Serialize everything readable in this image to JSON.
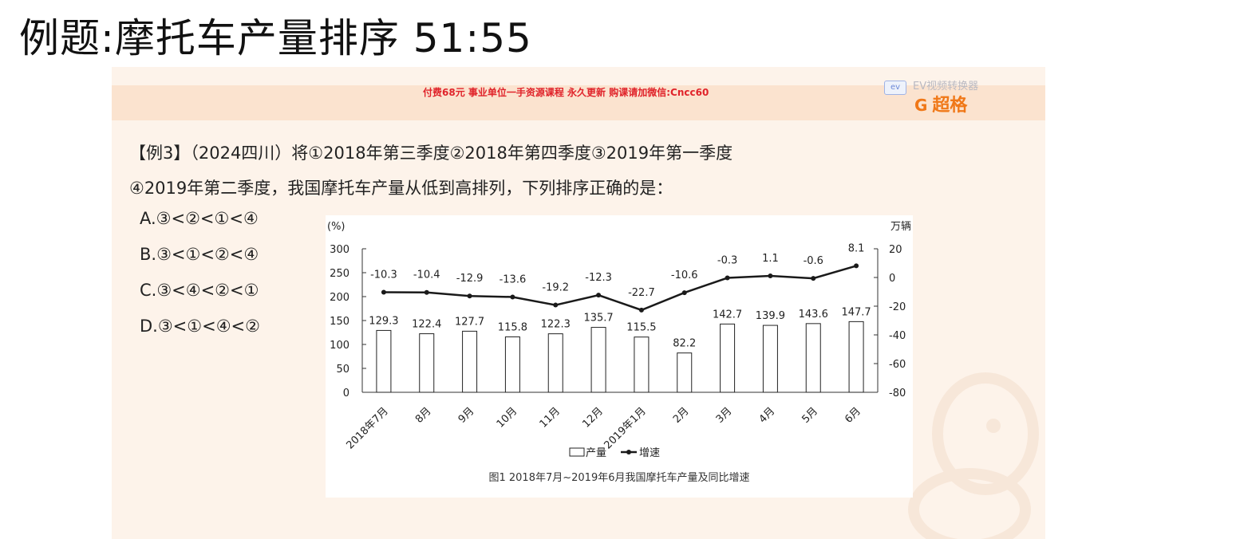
{
  "slide_title": "例题:摩托车产量排序 51:55",
  "banner": {
    "ad_text": "付费68元 事业单位一手资源课程 永久更新 购课请加微信:Cncc60",
    "watermark_badge": "ev",
    "watermark_text": "EV视频转换器",
    "brand_icon": "G",
    "brand_name": "超格"
  },
  "question": {
    "line1": "【例3】（2024四川）将①2018年第三季度②2018年第四季度③2019年第一季度",
    "line2": "④2019年第二季度，我国摩托车产量从低到高排列，下列排序正确的是："
  },
  "options": [
    {
      "text": "A.③<②<①<④"
    },
    {
      "text": "B.③<①<②<④"
    },
    {
      "text": "C.③<④<②<①"
    },
    {
      "text": "D.③<①<④<②"
    }
  ],
  "chart_data": {
    "type": "bar+line",
    "caption": "图1  2018年7月~2019年6月我国摩托车产量及同比增速",
    "left_unit": "(%)",
    "right_unit": "万辆",
    "categories": [
      "2018年7月",
      "8月",
      "9月",
      "10月",
      "11月",
      "12月",
      "2019年1月",
      "2月",
      "3月",
      "4月",
      "5月",
      "6月"
    ],
    "left_ticks": [
      "300",
      "250",
      "200",
      "150",
      "100",
      "50",
      "0"
    ],
    "right_ticks": [
      "20",
      "0",
      "-20",
      "-40",
      "-60",
      "-80"
    ],
    "left_ylim": [
      0,
      300
    ],
    "right_ylim": [
      -80,
      20
    ],
    "series": [
      {
        "name": "产量",
        "type": "bar",
        "values": [
          129.3,
          122.4,
          127.7,
          115.8,
          122.3,
          135.7,
          115.5,
          82.2,
          142.7,
          139.9,
          143.6,
          147.7
        ]
      },
      {
        "name": "增速",
        "type": "line",
        "values": [
          -10.3,
          -10.4,
          -12.9,
          -13.6,
          -19.2,
          -12.3,
          -22.7,
          -10.6,
          -0.3,
          1.1,
          -0.6,
          8.1
        ]
      }
    ],
    "legend_position": "bottom-center"
  },
  "colors": {
    "panel_bg": "#fdf3ea",
    "banner_bg": "#fbe3cf",
    "ad_red": "#e0232a",
    "brand_orange": "#f07818",
    "line": "#1a1a1a"
  }
}
